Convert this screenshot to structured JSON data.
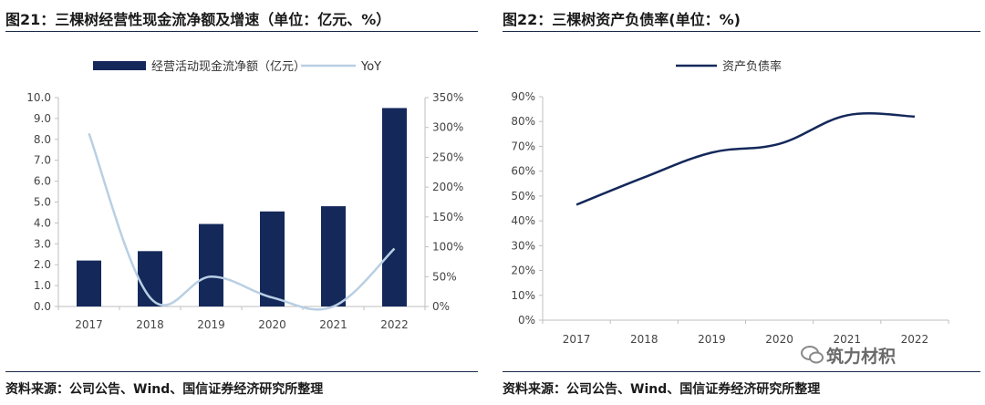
{
  "figures": [
    {
      "title": "图21：三棵树经营性现金流净额及增速（单位：亿元、%）",
      "source": "资料来源：公司公告、Wind、国信证券经济研究所整理"
    },
    {
      "title": "图22：三棵树资产负债率(单位：%)",
      "source": "资料来源：公司公告、Wind、国信证券经济研究所整理"
    }
  ],
  "watermark": "筑力材积",
  "colors": {
    "bar": "#14285a",
    "yoy_line": "#b9cfe3",
    "debt_line": "#14285a",
    "rule": "#1b2a4a"
  },
  "chart_data": [
    {
      "type": "bar",
      "categories": [
        "2017",
        "2018",
        "2019",
        "2020",
        "2021",
        "2022"
      ],
      "series": [
        {
          "name": "经营活动现金流净额（亿元）",
          "type": "bar",
          "axis": "left",
          "values": [
            2.2,
            2.65,
            3.95,
            4.55,
            4.8,
            9.5
          ]
        },
        {
          "name": "YoY",
          "type": "line",
          "axis": "right",
          "values": [
            290,
            15,
            50,
            15,
            0,
            97
          ]
        }
      ],
      "ylim_left": [
        0,
        10
      ],
      "yticks_left": [
        "0.0",
        "1.0",
        "2.0",
        "3.0",
        "4.0",
        "5.0",
        "6.0",
        "7.0",
        "8.0",
        "9.0",
        "10.0"
      ],
      "ylim_right": [
        0,
        350
      ],
      "yticks_right": [
        "0%",
        "50%",
        "100%",
        "150%",
        "200%",
        "250%",
        "300%",
        "350%"
      ],
      "legend": "top"
    },
    {
      "type": "line",
      "categories": [
        "2017",
        "2018",
        "2019",
        "2020",
        "2021",
        "2022"
      ],
      "series": [
        {
          "name": "资产负债率",
          "values": [
            46.5,
            57.5,
            67.5,
            71,
            82.5,
            82
          ]
        }
      ],
      "ylim": [
        0,
        90
      ],
      "yticks": [
        "0%",
        "10%",
        "20%",
        "30%",
        "40%",
        "50%",
        "60%",
        "70%",
        "80%",
        "90%"
      ],
      "legend": "top"
    }
  ]
}
